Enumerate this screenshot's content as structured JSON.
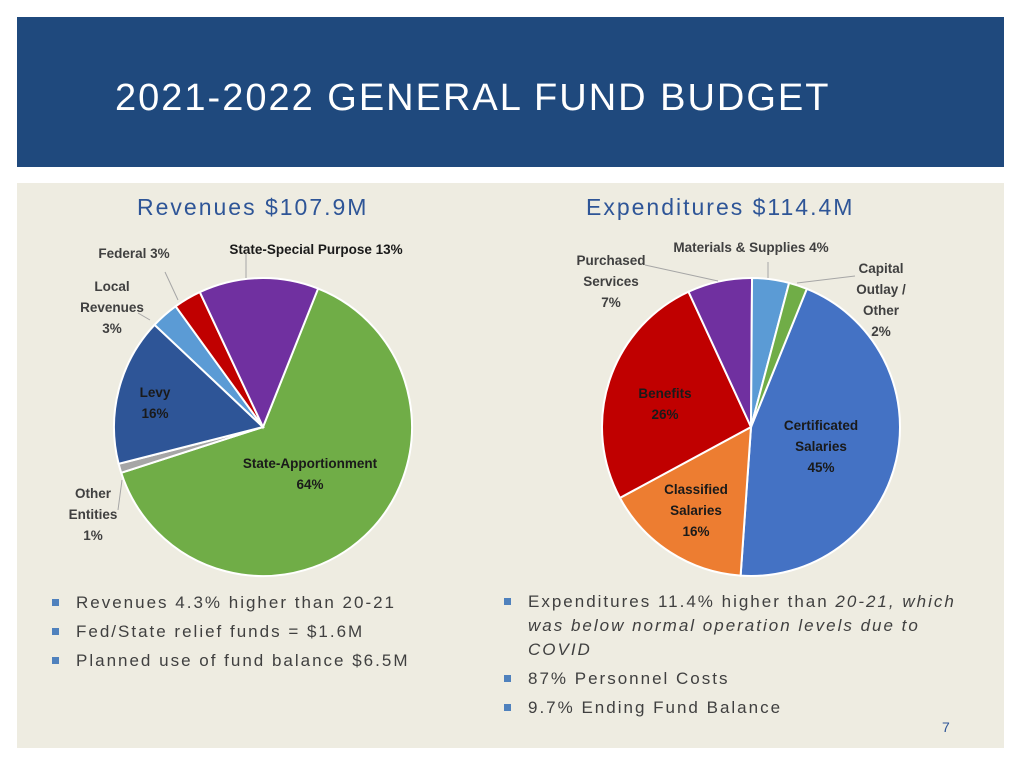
{
  "slide": {
    "title": "2021-2022 GENERAL FUND BUDGET",
    "page_number": "7",
    "colors": {
      "header": "#1f497d",
      "background": "#eeece1",
      "accent": "#2e5597",
      "bullet": "#4f81bd"
    }
  },
  "chart_data": [
    {
      "type": "pie",
      "title": "Revenues $107.9M",
      "slices": [
        {
          "name": "State-Apportionment",
          "value": 64,
          "lines": [
            "State-Apportionment",
            "64%"
          ],
          "color": "#70ad47"
        },
        {
          "name": "Other Entities",
          "value": 1,
          "lines": [
            "Other",
            "Entities",
            "1%"
          ],
          "color": "#a6a6a6"
        },
        {
          "name": "Levy",
          "value": 16,
          "lines": [
            "Levy",
            "16%"
          ],
          "color": "#2e5597"
        },
        {
          "name": "Local Revenues",
          "value": 3,
          "lines": [
            "Local",
            "Revenues",
            "3%"
          ],
          "color": "#5b9bd5"
        },
        {
          "name": "Federal",
          "value": 3,
          "lines": [
            "Federal 3%"
          ],
          "color": "#c00000"
        },
        {
          "name": "State-Special Purpose",
          "value": 13,
          "lines": [
            "State-Special Purpose  13%"
          ],
          "color": "#7030a0"
        }
      ]
    },
    {
      "type": "pie",
      "title": "Expenditures $114.4M",
      "slices": [
        {
          "name": "Certificated Salaries",
          "value": 45,
          "lines": [
            "Certificated",
            "Salaries",
            "45%"
          ],
          "color": "#4472c4"
        },
        {
          "name": "Classified Salaries",
          "value": 16,
          "lines": [
            "Classified",
            "Salaries",
            "16%"
          ],
          "color": "#ed7d31"
        },
        {
          "name": "Benefits",
          "value": 26,
          "lines": [
            "Benefits",
            "26%"
          ],
          "color": "#c00000"
        },
        {
          "name": "Purchased Services",
          "value": 7,
          "lines": [
            "Purchased",
            "Services",
            "7%"
          ],
          "color": "#7030a0"
        },
        {
          "name": "Materials & Supplies",
          "value": 4,
          "lines": [
            "Materials & Supplies 4%"
          ],
          "color": "#5b9bd5"
        },
        {
          "name": "Capital Outlay / Other",
          "value": 2,
          "lines": [
            "Capital",
            "Outlay /",
            "Other",
            "2%"
          ],
          "color": "#70ad47"
        }
      ]
    }
  ],
  "bullets_left": [
    "Revenues 4.3% higher than 20-21",
    "Fed/State relief funds = $1.6M",
    "Planned use of fund balance $6.5M"
  ],
  "bullets_right": {
    "first_plain": "Expenditures 11.4% higher than ",
    "first_italic": "20-21, which was below normal operation levels due to COVID",
    "rest": [
      "87% Personnel Costs",
      "9.7% Ending Fund Balance"
    ]
  }
}
